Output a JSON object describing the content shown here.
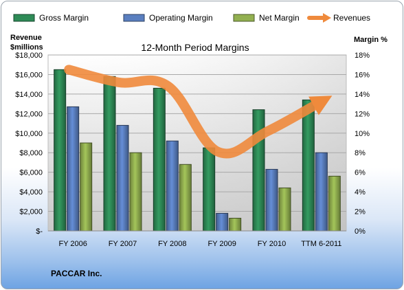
{
  "chart_data": {
    "type": "bar",
    "title": "12-Month Period Margins",
    "company": "PACCAR Inc.",
    "left_axis_label": [
      "Revenue",
      "$millions"
    ],
    "right_axis_label": "Margin %",
    "categories": [
      "FY 2006",
      "FY 2007",
      "FY 2008",
      "FY 2009",
      "FY 2010",
      "TTM 6-2011"
    ],
    "left_ticks": [
      "$-",
      "$2,000",
      "$4,000",
      "$6,000",
      "$8,000",
      "$10,000",
      "$12,000",
      "$14,000",
      "$16,000",
      "$18,000"
    ],
    "right_ticks": [
      "0%",
      "2%",
      "4%",
      "6%",
      "8%",
      "10%",
      "12%",
      "14%",
      "16%",
      "18%"
    ],
    "ylim_left": [
      0,
      18000
    ],
    "ylim_right": [
      0,
      18
    ],
    "series": [
      {
        "name": "Gross Margin",
        "axis": "right",
        "values": [
          16.5,
          15.8,
          14.6,
          8.5,
          12.4,
          13.4
        ],
        "color": "#2e8b57"
      },
      {
        "name": "Operating Margin",
        "axis": "right",
        "values": [
          12.7,
          10.8,
          9.2,
          1.8,
          6.3,
          8.0
        ],
        "color": "#5a7fc0"
      },
      {
        "name": "Net Margin",
        "axis": "right",
        "values": [
          9.0,
          8.0,
          6.8,
          1.3,
          4.4,
          5.6
        ],
        "color": "#92b050"
      },
      {
        "name": "Revenues",
        "axis": "left",
        "type": "line",
        "values": [
          16500,
          15200,
          14800,
          8100,
          10200,
          13000
        ],
        "color": "#ef8a3c"
      }
    ],
    "grid": true,
    "legend": "top"
  }
}
